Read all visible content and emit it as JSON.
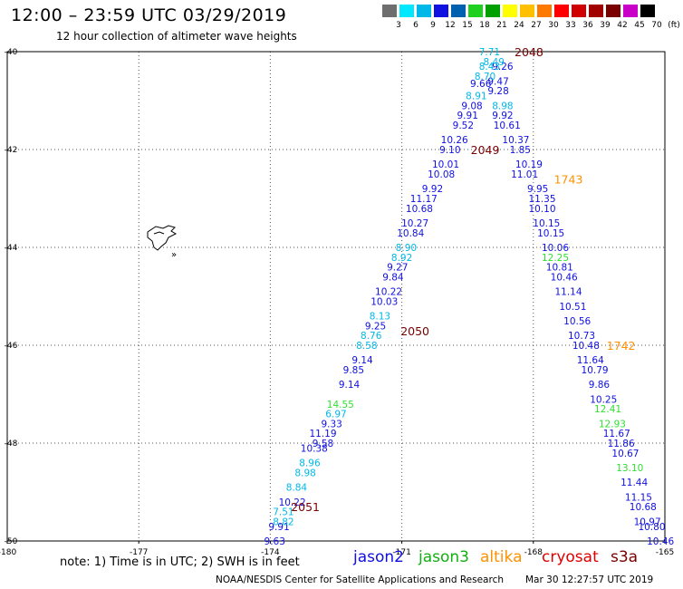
{
  "title": "12:00 – 23:59 UTC 03/29/2019",
  "subtitle": "12 hour collection of altimeter wave heights",
  "scale": {
    "labels": [
      "3",
      "6",
      "9",
      "12",
      "15",
      "18",
      "21",
      "24",
      "27",
      "30",
      "33",
      "36",
      "39",
      "42",
      "45",
      "70",
      "(ft)"
    ],
    "colors": [
      "#6e6e6e",
      "#00e8ff",
      "#00b8e8",
      "#1010e0",
      "#0060b0",
      "#20d020",
      "#00a000",
      "#ffff00",
      "#ffc000",
      "#ff7800",
      "#ff0000",
      "#d00000",
      "#a00000",
      "#7a0000",
      "#c800c8",
      "#000000"
    ]
  },
  "chart_data": {
    "type": "scatter",
    "axes": {
      "x_ticks": [
        "-180",
        "-177",
        "-174",
        "-171",
        "-168",
        "-165"
      ],
      "y_ticks": [
        "-40",
        "-42",
        "-44",
        "-46",
        "-48",
        "-50"
      ],
      "xlim": [
        -180,
        -165
      ],
      "ylim": [
        -50,
        -40
      ]
    },
    "series": [
      {
        "name": "jason2",
        "color": "#1010e0",
        "points": [
          {
            "v": "9.26",
            "x": -168.7,
            "y": -40.3
          },
          {
            "v": "9.47",
            "x": -168.8,
            "y": -40.6
          },
          {
            "v": "9.66",
            "x": -169.2,
            "y": -40.65
          },
          {
            "v": "9.28",
            "x": -168.8,
            "y": -40.8
          },
          {
            "v": "9.08",
            "x": -169.4,
            "y": -41.1
          },
          {
            "v": "9.91",
            "x": -169.5,
            "y": -41.3
          },
          {
            "v": "9.92",
            "x": -168.7,
            "y": -41.3
          },
          {
            "v": "9.52",
            "x": -169.6,
            "y": -41.5
          },
          {
            "v": "10.61",
            "x": -168.6,
            "y": -41.5
          },
          {
            "v": "10.26",
            "x": -169.8,
            "y": -41.8
          },
          {
            "v": "10.37",
            "x": -168.4,
            "y": -41.8
          },
          {
            "v": "9.10",
            "x": -169.9,
            "y": -42.0
          },
          {
            "v": "1.85",
            "x": -168.3,
            "y": -42.0
          },
          {
            "v": "10.01",
            "x": -170.0,
            "y": -42.3
          },
          {
            "v": "10.19",
            "x": -168.1,
            "y": -42.3
          },
          {
            "v": "10.08",
            "x": -170.1,
            "y": -42.5
          },
          {
            "v": "11.01",
            "x": -168.2,
            "y": -42.5
          },
          {
            "v": "9.92",
            "x": -170.3,
            "y": -42.8
          },
          {
            "v": "9.95",
            "x": -167.9,
            "y": -42.8
          },
          {
            "v": "11.17",
            "x": -170.5,
            "y": -43.0
          },
          {
            "v": "11.35",
            "x": -167.8,
            "y": -43.0
          },
          {
            "v": "10.68",
            "x": -170.6,
            "y": -43.2
          },
          {
            "v": "10.10",
            "x": -167.8,
            "y": -43.2
          },
          {
            "v": "10.27",
            "x": -170.7,
            "y": -43.5
          },
          {
            "v": "10.15",
            "x": -167.7,
            "y": -43.5
          },
          {
            "v": "10.84",
            "x": -170.8,
            "y": -43.7
          },
          {
            "v": "10.15",
            "x": -167.6,
            "y": -43.7
          },
          {
            "v": "10.06",
            "x": -167.5,
            "y": -44.0
          },
          {
            "v": "9.27",
            "x": -171.1,
            "y": -44.4
          },
          {
            "v": "10.81",
            "x": -167.4,
            "y": -44.4
          },
          {
            "v": "9.84",
            "x": -171.2,
            "y": -44.6
          },
          {
            "v": "10.46",
            "x": -167.3,
            "y": -44.6
          },
          {
            "v": "10.22",
            "x": -171.3,
            "y": -44.9
          },
          {
            "v": "11.14",
            "x": -167.2,
            "y": -44.9
          },
          {
            "v": "10.03",
            "x": -171.4,
            "y": -45.1
          },
          {
            "v": "10.51",
            "x": -167.1,
            "y": -45.2
          },
          {
            "v": "9.25",
            "x": -171.6,
            "y": -45.6
          },
          {
            "v": "10.56",
            "x": -167.0,
            "y": -45.5
          },
          {
            "v": "10.73",
            "x": -166.9,
            "y": -45.8
          },
          {
            "v": "10.48",
            "x": -166.8,
            "y": -46.0
          },
          {
            "v": "9.14",
            "x": -171.9,
            "y": -46.3
          },
          {
            "v": "11.64",
            "x": -166.7,
            "y": -46.3
          },
          {
            "v": "9.85",
            "x": -172.1,
            "y": -46.5
          },
          {
            "v": "10.79",
            "x": -166.6,
            "y": -46.5
          },
          {
            "v": "9.14",
            "x": -172.2,
            "y": -46.8
          },
          {
            "v": "9.86",
            "x": -166.5,
            "y": -46.8
          },
          {
            "v": "10.25",
            "x": -166.4,
            "y": -47.1
          },
          {
            "v": "9.33",
            "x": -172.6,
            "y": -47.6
          },
          {
            "v": "11.19",
            "x": -172.8,
            "y": -47.8
          },
          {
            "v": "11.67",
            "x": -166.1,
            "y": -47.8
          },
          {
            "v": "9.58",
            "x": -172.8,
            "y": -48.0
          },
          {
            "v": "11.86",
            "x": -166.0,
            "y": -48.0
          },
          {
            "v": "10.38",
            "x": -173.0,
            "y": -48.1
          },
          {
            "v": "10.67",
            "x": -165.9,
            "y": -48.2
          },
          {
            "v": "11.44",
            "x": -165.7,
            "y": -48.8
          },
          {
            "v": "10.22",
            "x": -173.5,
            "y": -49.2
          },
          {
            "v": "11.15",
            "x": -165.6,
            "y": -49.1
          },
          {
            "v": "10.68",
            "x": -165.5,
            "y": -49.3
          },
          {
            "v": "10.97",
            "x": -165.4,
            "y": -49.6
          },
          {
            "v": "9.91",
            "x": -173.8,
            "y": -49.7
          },
          {
            "v": "10.80",
            "x": -165.3,
            "y": -49.7
          },
          {
            "v": "9.63",
            "x": -173.9,
            "y": -50.0
          },
          {
            "v": "10.46",
            "x": -165.1,
            "y": -50.0
          }
        ]
      },
      {
        "name": "",
        "color": "#00b8e8",
        "points": [
          {
            "v": "7.71",
            "x": -169.0,
            "y": -40.0
          },
          {
            "v": "8.49",
            "x": -168.9,
            "y": -40.2
          },
          {
            "v": "8.43",
            "x": -169.0,
            "y": -40.3
          },
          {
            "v": "8.70",
            "x": -169.1,
            "y": -40.5
          },
          {
            "v": "8.91",
            "x": -169.3,
            "y": -40.9
          },
          {
            "v": "8.98",
            "x": -168.7,
            "y": -41.1
          },
          {
            "v": "8.90",
            "x": -170.9,
            "y": -44.0
          },
          {
            "v": "8.92",
            "x": -171.0,
            "y": -44.2
          },
          {
            "v": "8.13",
            "x": -171.5,
            "y": -45.4
          },
          {
            "v": "8.76",
            "x": -171.7,
            "y": -45.8
          },
          {
            "v": "8.58",
            "x": -171.8,
            "y": -46.0
          },
          {
            "v": "6.97",
            "x": -172.5,
            "y": -47.4
          },
          {
            "v": "8.96",
            "x": -173.1,
            "y": -48.4
          },
          {
            "v": "8.98",
            "x": -173.2,
            "y": -48.6
          },
          {
            "v": "8.84",
            "x": -173.4,
            "y": -48.9
          },
          {
            "v": "7.51",
            "x": -173.7,
            "y": -49.4
          },
          {
            "v": "8.82",
            "x": -173.7,
            "y": -49.6
          }
        ]
      },
      {
        "name": "jason3",
        "color": "#30e030",
        "points": [
          {
            "v": "12.25",
            "x": -167.5,
            "y": -44.2
          },
          {
            "v": "14.55",
            "x": -172.4,
            "y": -47.2
          },
          {
            "v": "12.41",
            "x": -166.3,
            "y": -47.3
          },
          {
            "v": "12.93",
            "x": -166.2,
            "y": -47.6
          },
          {
            "v": "13.10",
            "x": -165.8,
            "y": -48.5
          }
        ]
      }
    ],
    "time_labels": [
      {
        "text": "2048",
        "x": -168.1,
        "y": -40.0,
        "color": "#7a0000"
      },
      {
        "text": "2049",
        "x": -169.1,
        "y": -42.0,
        "color": "#7a0000"
      },
      {
        "text": "1743",
        "x": -167.2,
        "y": -42.6,
        "color": "#ff9000"
      },
      {
        "text": "2050",
        "x": -170.7,
        "y": -45.7,
        "color": "#7a0000"
      },
      {
        "text": "1742",
        "x": -166.0,
        "y": -46.0,
        "color": "#ff9000"
      },
      {
        "text": "2051",
        "x": -173.2,
        "y": -49.3,
        "color": "#7a0000"
      }
    ],
    "land_label": "»"
  },
  "footer": {
    "note": "note: 1) Time is in UTC; 2) SWH is in feet",
    "satellites": [
      {
        "name": "jason2",
        "color": "#1010e0"
      },
      {
        "name": "jason3",
        "color": "#10b010"
      },
      {
        "name": "altika",
        "color": "#ff9000"
      },
      {
        "name": "cryosat",
        "color": "#e00000"
      },
      {
        "name": "s3a",
        "color": "#7a0000"
      }
    ],
    "credit": "NOAA/NESDIS Center for Satellite Applications and Research",
    "timestamp": "Mar 30 12:27:57 UTC 2019"
  }
}
